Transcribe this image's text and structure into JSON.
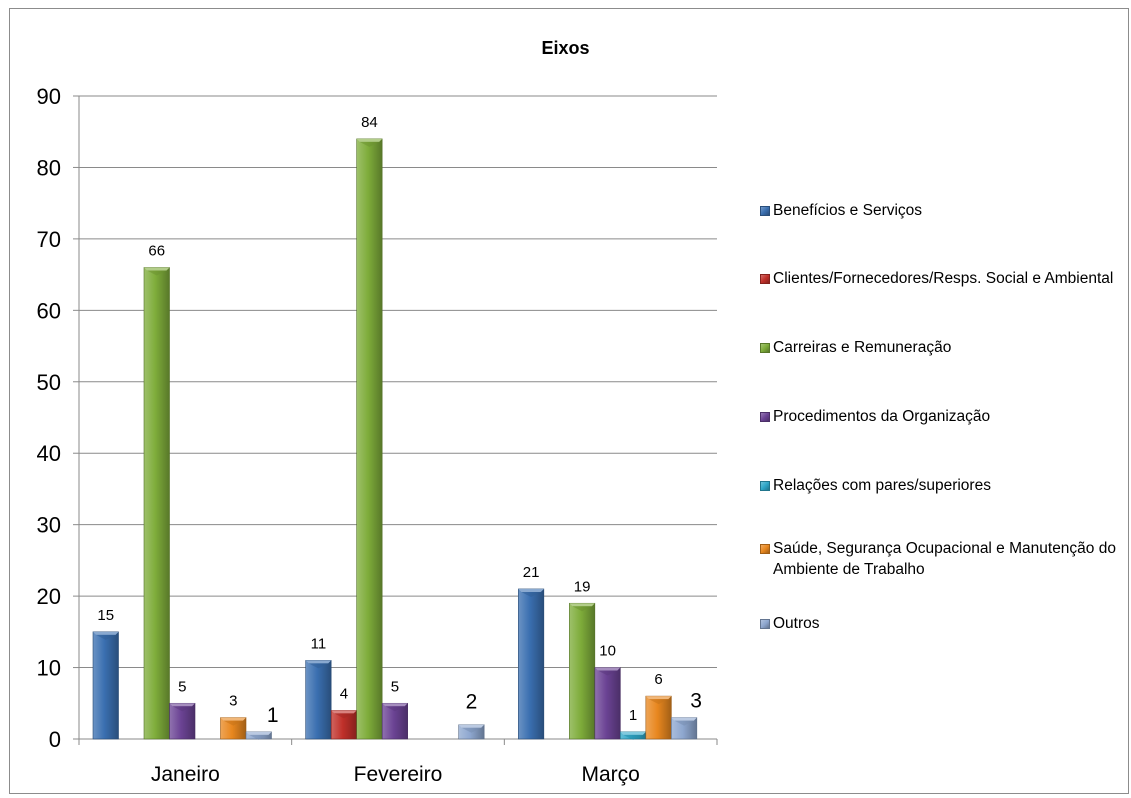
{
  "chart_data": {
    "type": "bar",
    "title": "Eixos",
    "categories": [
      "Janeiro",
      "Fevereiro",
      "Março"
    ],
    "ylim": [
      0,
      90
    ],
    "yticks": [
      0,
      10,
      20,
      30,
      40,
      50,
      60,
      70,
      80,
      90
    ],
    "grid": true,
    "legend_position": "right",
    "series": [
      {
        "name": "Benefícios e Serviços",
        "color": "#3a6fb0",
        "values": [
          15,
          11,
          21
        ],
        "labels": [
          "15",
          "11",
          "21"
        ]
      },
      {
        "name": "Clientes/Fornecedores/Resps. Social e Ambiental",
        "color": "#c0302a",
        "values": [
          0,
          4,
          0
        ],
        "labels": [
          "",
          "4",
          ""
        ]
      },
      {
        "name": "Carreiras e Remuneração",
        "color": "#7eac3a",
        "values": [
          66,
          84,
          19
        ],
        "labels": [
          "66",
          "84",
          "19"
        ]
      },
      {
        "name": "Procedimentos da Organização",
        "color": "#6b4394",
        "values": [
          5,
          5,
          10
        ],
        "labels": [
          "5",
          "5",
          "10"
        ]
      },
      {
        "name": "Relações com pares/superiores",
        "color": "#2fa7c8",
        "values": [
          0,
          0,
          1
        ],
        "labels": [
          "",
          "",
          "1"
        ]
      },
      {
        "name": "Saúde, Segurança Ocupacional e Manutenção do Ambiente de Trabalho",
        "color": "#e8871f",
        "values": [
          3,
          0,
          6
        ],
        "labels": [
          "3",
          "",
          "6"
        ]
      },
      {
        "name": "Outros",
        "color": "#8ea7cf",
        "values": [
          1,
          2,
          3
        ],
        "labels": [
          "1",
          "2",
          "3"
        ]
      }
    ]
  }
}
